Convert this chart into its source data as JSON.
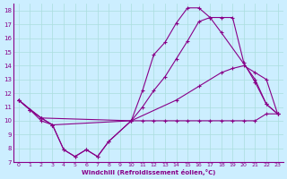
{
  "background_color": "#cceeff",
  "grid_color": "#aadddd",
  "line_color": "#880088",
  "marker": "+",
  "xlabel": "Windchill (Refroidissement éolien,°C)",
  "xlim": [
    -0.5,
    23.5
  ],
  "ylim": [
    7,
    18.5
  ],
  "yticks": [
    7,
    8,
    9,
    10,
    11,
    12,
    13,
    14,
    15,
    16,
    17,
    18
  ],
  "xticks": [
    0,
    1,
    2,
    3,
    4,
    5,
    6,
    7,
    8,
    9,
    10,
    11,
    12,
    13,
    14,
    15,
    16,
    17,
    18,
    19,
    20,
    21,
    22,
    23
  ],
  "curves": [
    {
      "x": [
        0,
        1,
        2,
        3,
        4,
        5,
        6,
        7,
        8,
        10,
        11,
        12,
        13,
        14,
        15,
        16,
        17,
        18,
        19,
        20,
        21,
        22,
        23
      ],
      "y": [
        11.5,
        10.8,
        10.0,
        9.7,
        7.9,
        7.4,
        7.9,
        7.4,
        8.5,
        10.0,
        10.0,
        10.0,
        10.0,
        10.0,
        10.0,
        10.0,
        10.0,
        10.0,
        10.0,
        10.0,
        10.0,
        10.5,
        10.5
      ]
    },
    {
      "x": [
        0,
        2,
        10,
        14,
        16,
        18,
        19,
        20,
        21,
        22,
        23
      ],
      "y": [
        11.5,
        10.2,
        10.0,
        11.5,
        12.5,
        13.5,
        13.8,
        14.0,
        13.5,
        13.0,
        10.5
      ]
    },
    {
      "x": [
        0,
        1,
        2,
        3,
        10,
        11,
        12,
        13,
        14,
        15,
        16,
        17,
        18,
        19,
        20,
        21,
        22,
        23
      ],
      "y": [
        11.5,
        10.8,
        10.2,
        9.7,
        10.0,
        11.0,
        12.2,
        13.2,
        14.5,
        15.8,
        17.2,
        17.5,
        17.5,
        17.5,
        14.2,
        12.8,
        11.2,
        10.5
      ]
    },
    {
      "x": [
        0,
        1,
        2,
        3,
        4,
        5,
        6,
        7,
        8,
        10,
        11,
        12,
        13,
        14,
        15,
        16,
        17,
        18,
        21,
        22,
        23
      ],
      "y": [
        11.5,
        10.8,
        10.2,
        9.7,
        7.9,
        7.4,
        7.9,
        7.4,
        8.5,
        10.0,
        12.2,
        14.8,
        15.7,
        17.1,
        18.2,
        18.2,
        17.5,
        16.4,
        13.0,
        11.2,
        10.5
      ]
    }
  ]
}
